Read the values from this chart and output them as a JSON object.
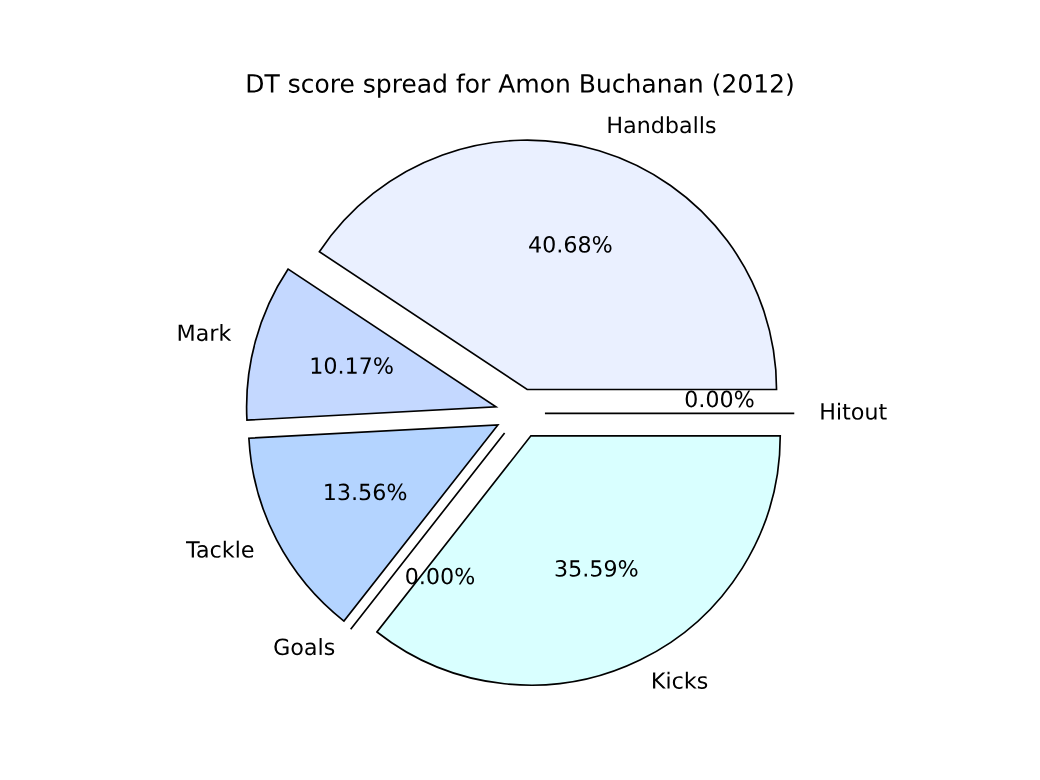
{
  "chart_data": {
    "type": "pie",
    "title": "DT score spread for Amon Buchanan (2012)",
    "categories": [
      "Hitout",
      "Handballs",
      "Mark",
      "Tackle",
      "Goals",
      "Kicks"
    ],
    "values": [
      0.0,
      40.68,
      10.17,
      13.56,
      0.0,
      35.59
    ],
    "value_labels": [
      "0.00%",
      "40.68%",
      "10.17%",
      "13.56%",
      "0.00%",
      "35.59%"
    ],
    "colors": [
      "#e0ecff",
      "#eaf0ff",
      "#c4d8ff",
      "#b4d4ff",
      "#c8e0ff",
      "#d9ffff"
    ]
  }
}
